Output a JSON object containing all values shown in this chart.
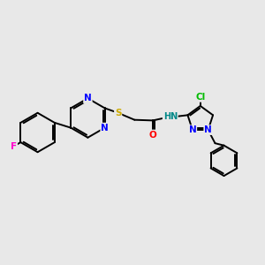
{
  "background_color": "#e8e8e8",
  "bond_color": "#000000",
  "bond_width": 1.4,
  "atom_colors": {
    "N": "#0000ff",
    "S": "#ccaa00",
    "O": "#ff0000",
    "F": "#ff00cc",
    "Cl": "#00bb00",
    "H": "#008888",
    "C": "#000000"
  },
  "font_size": 7.0
}
